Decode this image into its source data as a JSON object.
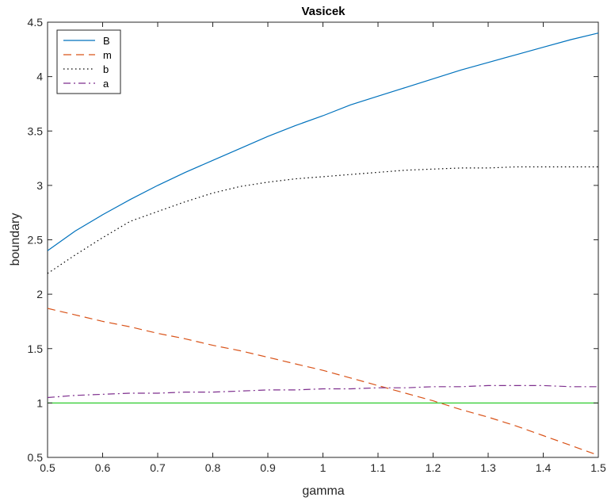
{
  "chart_data": {
    "type": "line",
    "title": "Vasicek",
    "xlabel": "gamma",
    "ylabel": "boundary",
    "xlim": [
      0.5,
      1.5
    ],
    "ylim": [
      0.5,
      4.5
    ],
    "xticks": [
      0.5,
      0.6,
      0.7,
      0.8,
      0.9,
      1,
      1.1,
      1.2,
      1.3,
      1.4,
      1.5
    ],
    "xtick_labels": [
      "0.5",
      "0.6",
      "0.7",
      "0.8",
      "0.9",
      "1",
      "1.1",
      "1.2",
      "1.3",
      "1.4",
      "1.5"
    ],
    "yticks": [
      0.5,
      1,
      1.5,
      2,
      2.5,
      3,
      3.5,
      4,
      4.5
    ],
    "ytick_labels": [
      "0.5",
      "1",
      "1.5",
      "2",
      "2.5",
      "3",
      "3.5",
      "4",
      "4.5"
    ],
    "grid": false,
    "legend_position": "top-left",
    "x": [
      0.5,
      0.55,
      0.6,
      0.65,
      0.7,
      0.75,
      0.8,
      0.85,
      0.9,
      0.95,
      1.0,
      1.05,
      1.1,
      1.15,
      1.2,
      1.25,
      1.3,
      1.35,
      1.4,
      1.45,
      1.5
    ],
    "series": [
      {
        "name": "B",
        "color": "#0072bd",
        "dash": "solid",
        "values": [
          2.4,
          2.58,
          2.73,
          2.87,
          3.0,
          3.12,
          3.23,
          3.34,
          3.45,
          3.55,
          3.64,
          3.74,
          3.82,
          3.9,
          3.98,
          4.06,
          4.13,
          4.2,
          4.27,
          4.34,
          4.4
        ]
      },
      {
        "name": "m",
        "color": "#d95319",
        "dash": "dashed",
        "values": [
          1.87,
          1.81,
          1.75,
          1.7,
          1.64,
          1.59,
          1.53,
          1.48,
          1.42,
          1.36,
          1.3,
          1.23,
          1.16,
          1.09,
          1.02,
          0.94,
          0.87,
          0.79,
          0.7,
          0.61,
          0.52
        ]
      },
      {
        "name": "b",
        "color": "#000000",
        "dash": "dotted",
        "values": [
          2.19,
          2.36,
          2.52,
          2.67,
          2.76,
          2.85,
          2.93,
          2.99,
          3.03,
          3.06,
          3.08,
          3.1,
          3.12,
          3.14,
          3.15,
          3.16,
          3.16,
          3.17,
          3.17,
          3.17,
          3.17
        ]
      },
      {
        "name": "a",
        "color": "#7e2f8e",
        "dash": "dashdot",
        "values": [
          1.05,
          1.07,
          1.08,
          1.09,
          1.09,
          1.1,
          1.1,
          1.11,
          1.12,
          1.12,
          1.13,
          1.13,
          1.14,
          1.14,
          1.15,
          1.15,
          1.16,
          1.16,
          1.16,
          1.15,
          1.15
        ]
      }
    ],
    "reference_lines": [
      {
        "y": 1,
        "color": "#2ecc2e"
      }
    ]
  }
}
